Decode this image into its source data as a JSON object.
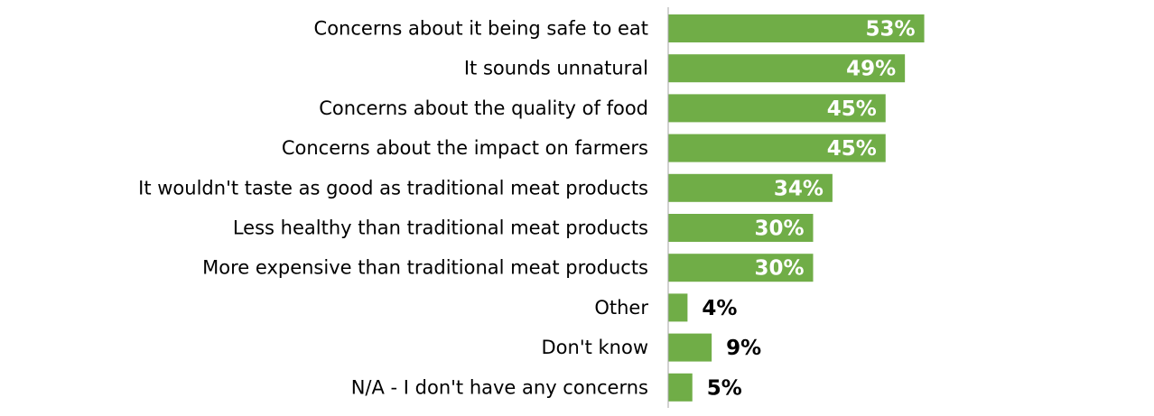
{
  "chart_data": {
    "type": "bar",
    "orientation": "horizontal",
    "title": "",
    "xlabel": "",
    "ylabel": "",
    "categories": [
      "Concerns about it being safe to eat",
      "It sounds unnatural",
      "Concerns about the quality of food",
      "Concerns about the impact on farmers",
      "It wouldn't taste as good as traditional meat products",
      "Less healthy than traditional meat products",
      "More expensive than traditional meat products",
      "Other",
      "Don't know",
      "N/A - I don't have any concerns"
    ],
    "values": [
      53,
      49,
      45,
      45,
      34,
      30,
      30,
      4,
      9,
      5
    ],
    "value_labels": [
      "53%",
      "49%",
      "45%",
      "45%",
      "34%",
      "30%",
      "30%",
      "4%",
      "9%",
      "5%"
    ],
    "unit": "%",
    "xlim": [
      0,
      100
    ],
    "grid": false,
    "legend": "none"
  },
  "colors": {
    "bar": "#70ad47",
    "axis": "#a6a6a6",
    "label_inside": "#ffffff",
    "label_outside": "#000000",
    "text": "#000000"
  }
}
